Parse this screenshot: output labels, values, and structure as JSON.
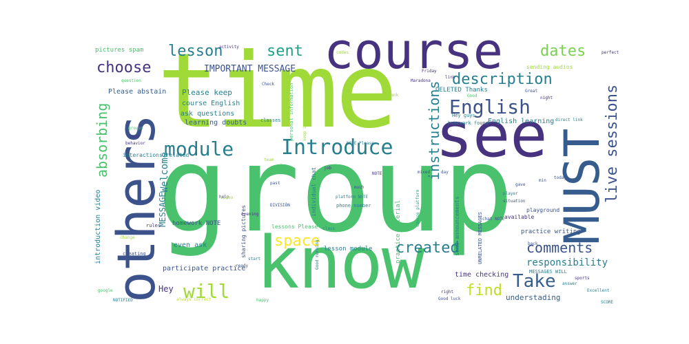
{
  "palette": {
    "dark_purple": "#46327e",
    "indigo": "#3b528b",
    "blue": "#365c8d",
    "teal": "#277f8e",
    "teal_green": "#1fa187",
    "green": "#4ac16d",
    "light_green": "#7ad151",
    "lime": "#a0da39",
    "yellow_green": "#bddf26",
    "yellow": "#fde725"
  },
  "words": [
    {
      "text": "group",
      "color": "#4ac16d"
    },
    {
      "text": "time",
      "color": "#a0da39"
    },
    {
      "text": "course",
      "color": "#46327e"
    },
    {
      "text": "know",
      "color": "#4ac16d"
    },
    {
      "text": "others",
      "color": "#3b528b"
    },
    {
      "text": "see",
      "color": "#46327e"
    },
    {
      "text": "MUST",
      "color": "#365c8d"
    },
    {
      "text": "Introduce",
      "color": "#277f8e"
    },
    {
      "text": "module",
      "color": "#277f8e"
    },
    {
      "text": "English",
      "color": "#3b528b"
    },
    {
      "text": "description",
      "color": "#277f8e"
    },
    {
      "text": "live sessions",
      "color": "#3b528b"
    },
    {
      "text": "lesson",
      "color": "#277f8e"
    },
    {
      "text": "sent",
      "color": "#1fa187"
    },
    {
      "text": "dates",
      "color": "#7ad151"
    },
    {
      "text": "choose",
      "color": "#46327e"
    },
    {
      "text": "absorbing",
      "color": "#4ac16d"
    },
    {
      "text": "instructions",
      "color": "#277f8e"
    },
    {
      "text": "space",
      "color": "#fde725"
    },
    {
      "text": "created",
      "color": "#277f8e"
    },
    {
      "text": "comments",
      "color": "#3b528b"
    },
    {
      "text": "Take",
      "color": "#365c8d"
    },
    {
      "text": "will",
      "color": "#a0da39"
    },
    {
      "text": "find",
      "color": "#bddf26"
    },
    {
      "text": "responsibility",
      "color": "#277f8e"
    },
    {
      "text": "IMPORTANT MESSAGE",
      "color": "#3b528b"
    },
    {
      "text": "Welcome",
      "color": "#277f8e"
    },
    {
      "text": "MESSAGE",
      "color": "#277f8e"
    },
    {
      "text": "Please abstain",
      "color": "#365c8d"
    },
    {
      "text": "Please keep",
      "color": "#277f8e"
    },
    {
      "text": "course English",
      "color": "#277f8e"
    },
    {
      "text": "ask questions",
      "color": "#277f8e"
    },
    {
      "text": "learning doubts",
      "color": "#365c8d"
    },
    {
      "text": "introduction video",
      "color": "#277f8e"
    },
    {
      "text": "homework NOTE",
      "color": "#3b528b"
    },
    {
      "text": "even ask",
      "color": "#277f8e"
    },
    {
      "text": "participate practice",
      "color": "#3b528b"
    },
    {
      "text": "Hey",
      "color": "#46327e"
    },
    {
      "text": "understading",
      "color": "#365c8d"
    },
    {
      "text": "practice writing",
      "color": "#3b528b"
    },
    {
      "text": "English learning",
      "color": "#277f8e"
    },
    {
      "text": "time checking",
      "color": "#46327e"
    },
    {
      "text": "DELETED Thanks",
      "color": "#277f8e"
    },
    {
      "text": "pictures spam",
      "color": "#4ac16d"
    },
    {
      "text": "interactions related",
      "color": "#277f8e"
    },
    {
      "text": "sharing pictures",
      "color": "#3b528b"
    },
    {
      "text": "lessons Please",
      "color": "#4ac16d"
    },
    {
      "text": "lesson module",
      "color": "#277f8e"
    },
    {
      "text": "individual chat",
      "color": "#277f8e"
    },
    {
      "text": "practice material",
      "color": "#4ac16d"
    },
    {
      "text": "send announcements",
      "color": "#277f8e"
    },
    {
      "text": "UNRELATED MESSAGES",
      "color": "#3b528b"
    },
    {
      "text": "MESSAGES WILL",
      "color": "#277f8e"
    },
    {
      "text": "sending audios",
      "color": "#a0da39"
    },
    {
      "text": "homework found",
      "color": "#277f8e"
    },
    {
      "text": "Hey guys",
      "color": "#277f8e"
    },
    {
      "text": "personal information",
      "color": "#4ac16d"
    },
    {
      "text": "keep interactions",
      "color": "#a0da39"
    },
    {
      "text": "classes",
      "color": "#277f8e"
    },
    {
      "text": "phone number",
      "color": "#277f8e"
    },
    {
      "text": "platform NOTE",
      "color": "#277f8e"
    },
    {
      "text": "playground",
      "color": "#3b528b"
    },
    {
      "text": "available",
      "color": "#46327e"
    },
    {
      "text": "rules",
      "color": "#46327e"
    },
    {
      "text": "change",
      "color": "#a0da39"
    },
    {
      "text": "cheating",
      "color": "#3b528b"
    },
    {
      "text": "google",
      "color": "#4ac16d"
    },
    {
      "text": "Good morning",
      "color": "#277f8e"
    },
    {
      "text": "ready",
      "color": "#3b528b"
    },
    {
      "text": "start",
      "color": "#277f8e"
    },
    {
      "text": "activity",
      "color": "#46327e"
    },
    {
      "text": "Check",
      "color": "#3b528b"
    },
    {
      "text": "codes",
      "color": "#a0da39"
    },
    {
      "text": "perfect",
      "color": "#46327e"
    },
    {
      "text": "Excellent",
      "color": "#277f8e"
    },
    {
      "text": "Good luck",
      "color": "#3b528b"
    },
    {
      "text": "sports",
      "color": "#46327e"
    },
    {
      "text": "today",
      "color": "#3b528b"
    },
    {
      "text": "chat NOTE",
      "color": "#3b528b"
    },
    {
      "text": "right",
      "color": "#46327e"
    },
    {
      "text": "back",
      "color": "#3b528b"
    },
    {
      "text": "player",
      "color": "#277f8e"
    },
    {
      "text": "situation",
      "color": "#3b528b"
    },
    {
      "text": "Friday",
      "color": "#46327e"
    },
    {
      "text": "Good",
      "color": "#4ac16d"
    },
    {
      "text": "Thank",
      "color": "#a0da39"
    },
    {
      "text": "Great",
      "color": "#3b528b"
    },
    {
      "text": "night",
      "color": "#46327e"
    },
    {
      "text": "link",
      "color": "#46327e"
    },
    {
      "text": "direct link",
      "color": "#277f8e"
    },
    {
      "text": "much",
      "color": "#3b528b"
    },
    {
      "text": "past",
      "color": "#3b528b"
    },
    {
      "text": "job",
      "color": "#46327e"
    },
    {
      "text": "team",
      "color": "#a0da39"
    },
    {
      "text": "groups",
      "color": "#4ac16d"
    },
    {
      "text": "NOTIFIED",
      "color": "#277f8e"
    },
    {
      "text": "always correct",
      "color": "#bddf26"
    },
    {
      "text": "happy",
      "color": "#4ac16d"
    },
    {
      "text": "mixed",
      "color": "#3b528b"
    },
    {
      "text": "answer",
      "color": "#277f8e"
    },
    {
      "text": "NOTE Please",
      "color": "#277f8e"
    },
    {
      "text": "evening",
      "color": "#46327e"
    },
    {
      "text": "help",
      "color": "#46327e"
    },
    {
      "text": "video",
      "color": "#a0da39"
    },
    {
      "text": "question",
      "color": "#4ac16d"
    },
    {
      "text": "year",
      "color": "#46327e"
    },
    {
      "text": "behavior",
      "color": "#46327e"
    },
    {
      "text": "day",
      "color": "#3b528b"
    },
    {
      "text": "gave",
      "color": "#3b528b"
    },
    {
      "text": "min",
      "color": "#3b528b"
    },
    {
      "text": "Maradona",
      "color": "#46327e"
    },
    {
      "text": "DIVISIÓN",
      "color": "#3b528b"
    },
    {
      "text": "SCORE",
      "color": "#277f8e"
    },
    {
      "text": "class",
      "color": "#277f8e"
    },
    {
      "text": "course platform",
      "color": "#1fa187"
    },
    {
      "text": "NOTE",
      "color": "#46327e"
    }
  ]
}
